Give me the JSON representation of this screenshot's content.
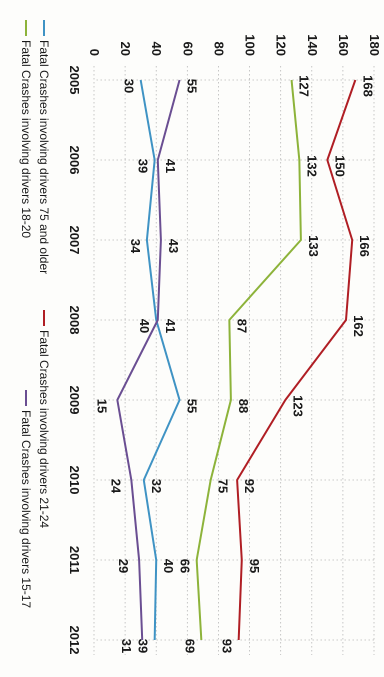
{
  "chart_data": {
    "type": "line",
    "x": [
      "2005",
      "2006",
      "2007",
      "2008",
      "2009",
      "2010",
      "2011",
      "2012"
    ],
    "ylim": [
      0,
      180
    ],
    "y_ticks": [
      "0",
      "20",
      "40",
      "60",
      "80",
      "100",
      "120",
      "140",
      "160",
      "180"
    ],
    "grid": true,
    "legend_position": "bottom",
    "series": [
      {
        "name": "Fatal Crashes involving drivers 21-24",
        "color": "#b01e24",
        "values": [
          168,
          150,
          166,
          162,
          123,
          92,
          95,
          93
        ]
      },
      {
        "name": "Fatal Crashes involving drivers 18-20",
        "color": "#8db33a",
        "values": [
          127,
          132,
          133,
          87,
          88,
          75,
          66,
          69
        ]
      },
      {
        "name": "Fatal Crashes involving drivers 75 and older",
        "color": "#3f93c4",
        "values": [
          30,
          39,
          34,
          40,
          55,
          32,
          40,
          39
        ]
      },
      {
        "name": "Fatal Crashes involving drivers 15-17",
        "color": "#6a4e92",
        "values": [
          55,
          41,
          43,
          41,
          15,
          24,
          29,
          31
        ]
      }
    ]
  }
}
